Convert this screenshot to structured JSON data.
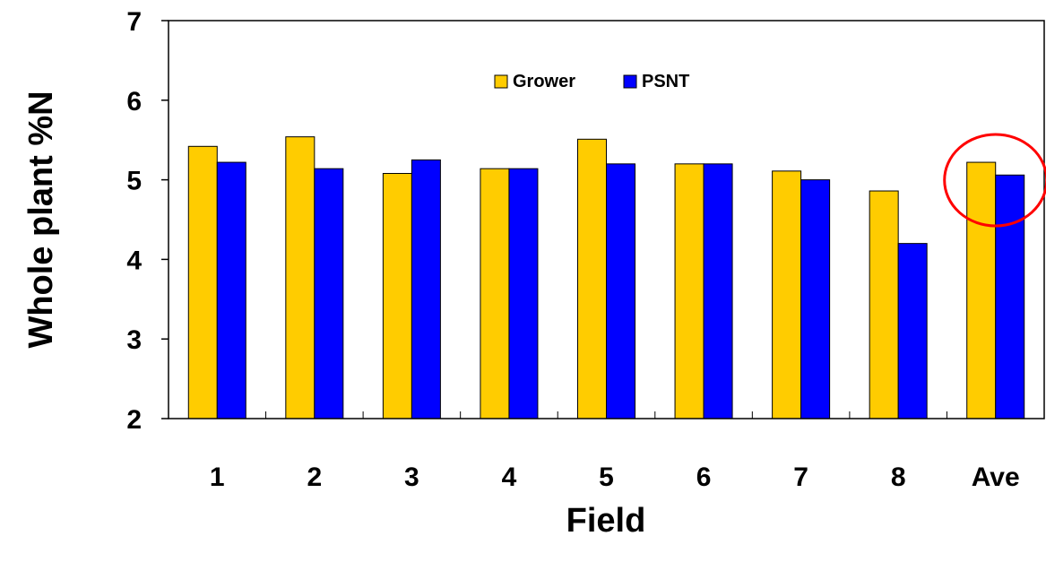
{
  "chart_data": {
    "type": "bar",
    "title": "",
    "xlabel": "Field",
    "ylabel": "Whole plant %N",
    "categories": [
      "1",
      "2",
      "3",
      "4",
      "5",
      "6",
      "7",
      "8",
      "Ave"
    ],
    "series": [
      {
        "name": "Grower",
        "color": "#FFCC00",
        "values": [
          5.42,
          5.54,
          5.08,
          5.14,
          5.51,
          5.2,
          5.11,
          4.86,
          5.22
        ]
      },
      {
        "name": "PSNT",
        "color": "#0000FF",
        "values": [
          5.22,
          5.14,
          5.25,
          5.14,
          5.2,
          5.2,
          5.0,
          4.2,
          5.06
        ]
      }
    ],
    "ylim": [
      2,
      7
    ],
    "yticks": [
      "2",
      "3",
      "4",
      "5",
      "6",
      "7"
    ],
    "grid": false,
    "legend_position": "top-center",
    "highlight": {
      "category": "Ave",
      "shape": "circle",
      "color": "#FF0000"
    }
  }
}
